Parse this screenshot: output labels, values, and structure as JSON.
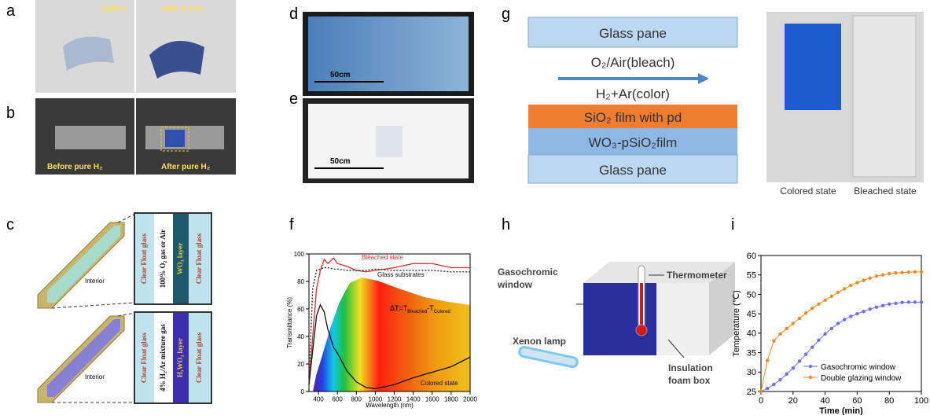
{
  "panel_labels": [
    "a",
    "b",
    "c",
    "d",
    "e",
    "f",
    "g",
    "h",
    "i"
  ],
  "panel_a": {
    "left": "Before",
    "right": "After 4% H₂"
  },
  "panel_b": {
    "left": "Before pure H₂",
    "right": "After pure H₂"
  },
  "panel_c": {
    "top": {
      "layers": [
        "Clear Float glass",
        "100% O₂ gas or Air",
        "WO₃ layer",
        "Clear Float glass"
      ],
      "interior": "Interior"
    },
    "bottom": {
      "layers": [
        "Clear Float glass",
        "4% H₂/Ar mixture gas",
        "HₓWO₃ layer",
        "Clear Float glass"
      ],
      "interior": "Interior"
    }
  },
  "panel_d": {
    "scale": "50cm"
  },
  "panel_e": {
    "scale": "50cm"
  },
  "panel_g": {
    "top_pane": "Glass pane",
    "bleach": "O₂/Air(bleach)",
    "color": "H₂+Ar(color)",
    "sio2": "SiO₂ film with pd",
    "wo3": "WO₃-pSiO₂film",
    "bottom_pane": "Glass pane",
    "colored_state": "Colored state",
    "bleached_state": "Bleached state"
  },
  "panel_h": {
    "window": [
      "Gasochromic",
      "window"
    ],
    "thermometer": "Thermometer",
    "lamp": "Xenon lamp",
    "box": [
      "Insulation",
      "foam box"
    ]
  },
  "chart_data": [
    {
      "type": "line",
      "x_label": "Wavelength (nm)",
      "y_label": "Transmittance (%)",
      "x": [
        300,
        340,
        380,
        420,
        460,
        500,
        560,
        600,
        700,
        800,
        900,
        1000,
        1200,
        1400,
        1600,
        1800,
        2000
      ],
      "xlim": [
        300,
        2000
      ],
      "xticks": [
        400,
        600,
        800,
        1000,
        1200,
        1400,
        1600,
        1800,
        2000
      ],
      "ylim": [
        0,
        100
      ],
      "yticks": [
        0,
        20,
        40,
        60,
        80,
        100
      ],
      "series": [
        {
          "name": "Bleached state",
          "color": "#d0312d",
          "style": "solid",
          "values": [
            5,
            40,
            75,
            88,
            96,
            93,
            97,
            93,
            91,
            88,
            87,
            88,
            90,
            93,
            93,
            90,
            90
          ]
        },
        {
          "name": "Glass substrates",
          "color": "#222222",
          "style": "dotted",
          "values": [
            10,
            75,
            88,
            89,
            90,
            90,
            89,
            89,
            88,
            88,
            88,
            89,
            88,
            88,
            88,
            87,
            87
          ]
        },
        {
          "name": "Colored state",
          "color": "#111111",
          "style": "solid",
          "values": [
            5,
            30,
            55,
            63,
            58,
            45,
            32,
            28,
            15,
            7,
            3,
            2,
            5,
            10,
            14,
            18,
            25
          ]
        }
      ],
      "delta_label": [
        "ΔT=T",
        "Bleached",
        "-T",
        "Colored"
      ]
    },
    {
      "type": "line",
      "x_label": "Time (min)",
      "y_label": "Temperature (℃)",
      "x": [
        0,
        4,
        8,
        12,
        16,
        20,
        24,
        28,
        32,
        36,
        40,
        44,
        48,
        52,
        56,
        60,
        64,
        68,
        72,
        76,
        80,
        84,
        88,
        92,
        96,
        100
      ],
      "xlim": [
        0,
        100
      ],
      "xticks": [
        0,
        20,
        40,
        60,
        80,
        100
      ],
      "ylim": [
        25,
        60
      ],
      "yticks": [
        25,
        30,
        35,
        40,
        45,
        50,
        55,
        60
      ],
      "legend": "lower right",
      "series": [
        {
          "name": "Gasochromic window",
          "color": "#6f6ff0",
          "marker": "circle",
          "values": [
            25.0,
            25.8,
            26.8,
            28.0,
            29.5,
            31.0,
            32.8,
            34.6,
            36.4,
            38.2,
            39.8,
            41.2,
            42.5,
            43.5,
            44.3,
            45.0,
            45.6,
            46.2,
            46.7,
            47.1,
            47.5,
            47.7,
            47.9,
            48.0,
            48.0,
            48.0
          ]
        },
        {
          "name": "Double glazing window",
          "color": "#f08a24",
          "marker": "circle",
          "values": [
            25.0,
            33.0,
            38.0,
            39.8,
            41.2,
            42.5,
            43.8,
            45.2,
            46.4,
            47.5,
            48.5,
            49.5,
            50.5,
            51.4,
            52.3,
            53.0,
            53.6,
            54.2,
            54.7,
            55.0,
            55.3,
            55.5,
            55.6,
            55.7,
            55.8,
            55.8
          ]
        }
      ]
    }
  ]
}
